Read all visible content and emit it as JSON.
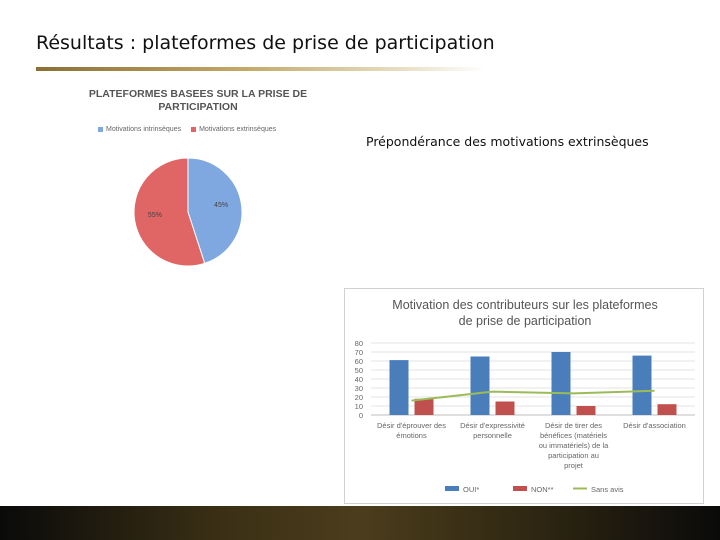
{
  "slide": {
    "title": "Résultats : plateformes de prise de participation",
    "emphasis": "Prépondérance des motivations extrinsèques"
  },
  "colors": {
    "blue": "#4a7ebb",
    "red": "#c0504d",
    "green": "#9bbb59",
    "pie_blue": "#7fa8e0",
    "pie_red": "#e06666",
    "band": "#3a2f15"
  },
  "chart_data": [
    {
      "type": "pie",
      "title_lines": [
        "PLATEFORMES BASEES SUR LA PRISE  DE",
        "PARTICIPATION"
      ],
      "legend_position": "top",
      "slices": [
        {
          "name": "Motivations intrinsèques",
          "value": 45,
          "label": "45%"
        },
        {
          "name": "Motivations extrinsèques",
          "value": 55,
          "label": "55%"
        }
      ]
    },
    {
      "type": "bar",
      "title_lines": [
        "Motivation des contributeurs sur les plateformes",
        "de prise de participation"
      ],
      "categories": [
        [
          "Désir d'éprouver des",
          "émotions"
        ],
        [
          "Désir d'expressivité",
          "personnelle"
        ],
        [
          "Désir de tirer des",
          "bénéfices (matériels",
          "ou immatériels) de la",
          "participation au",
          "projet"
        ],
        [
          "Désir d'association"
        ]
      ],
      "ylim": [
        0,
        80
      ],
      "yticks": [
        0,
        10,
        20,
        30,
        40,
        50,
        60,
        70,
        80
      ],
      "grid": true,
      "legend_position": "bottom",
      "series": [
        {
          "name": "OUI*",
          "type": "bar",
          "values": [
            61,
            65,
            70,
            66
          ]
        },
        {
          "name": "NON**",
          "type": "bar",
          "values": [
            18,
            15,
            10,
            12
          ]
        },
        {
          "name": "Sans avis",
          "type": "line",
          "values": [
            16,
            26,
            24,
            27
          ]
        }
      ]
    }
  ]
}
